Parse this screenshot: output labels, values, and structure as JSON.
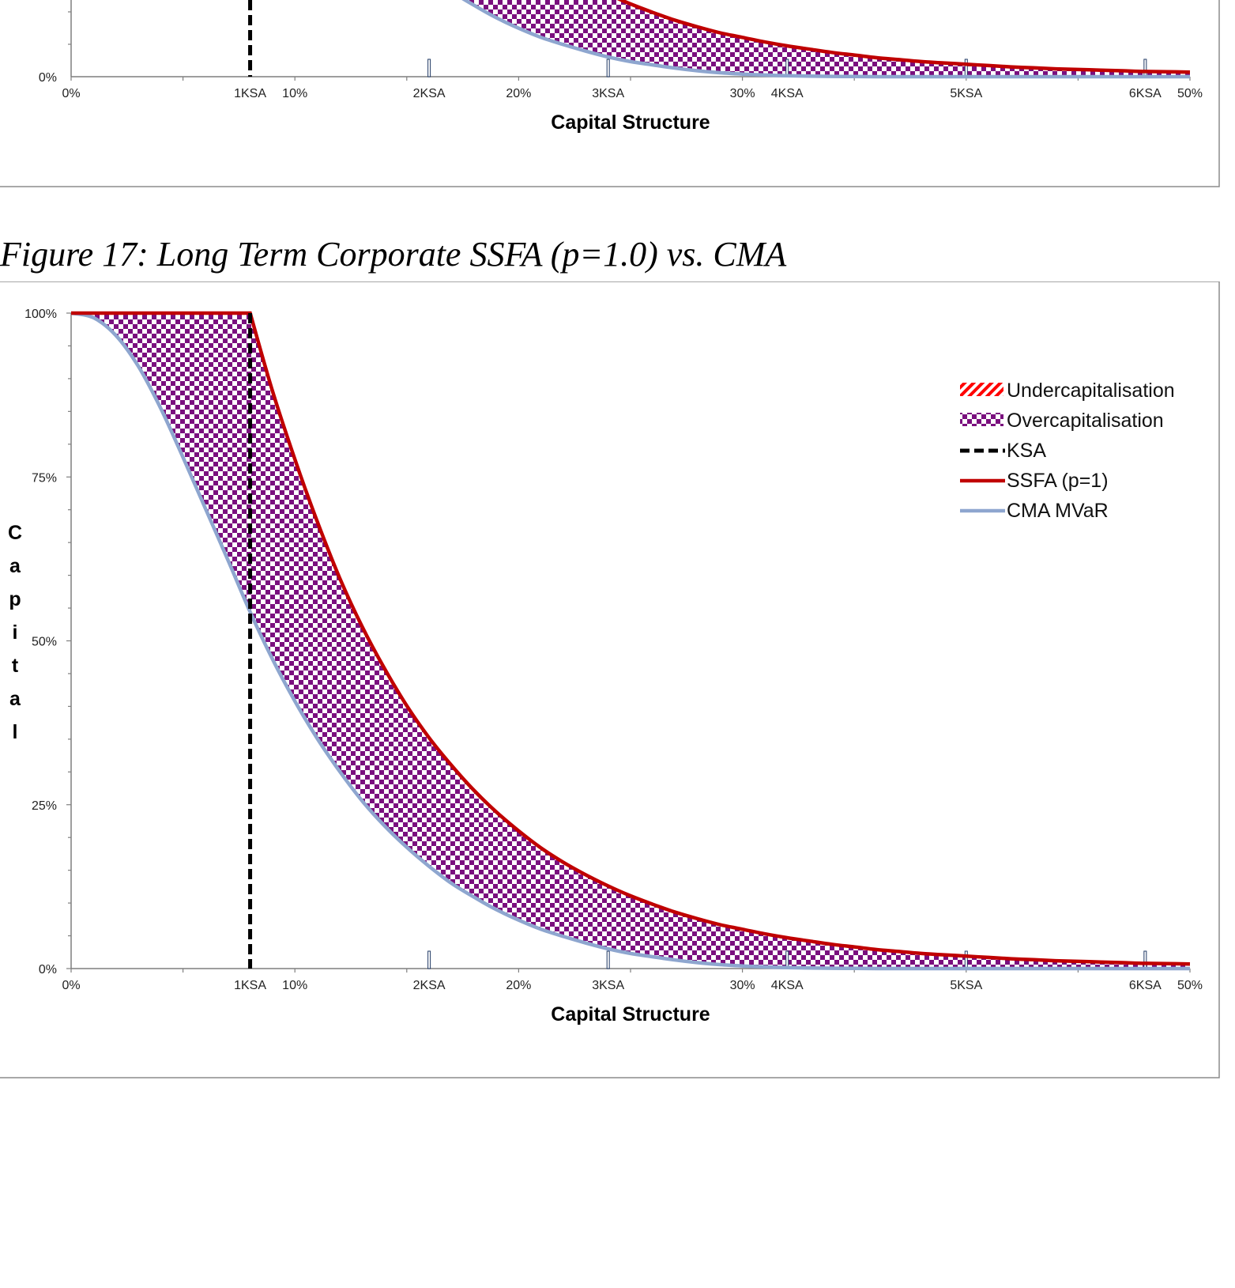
{
  "figure_caption": "Figure 17: Long Term Corporate SSFA (p=1.0) vs. CMA",
  "colors": {
    "ssfa": "#c00000",
    "cma": "#8ea6cf",
    "ksa": "#000000",
    "overcap": "#7a0f7e",
    "undercap": "#ff0000",
    "axis": "#7f7f7f",
    "frame": "#8c8c8c"
  },
  "top_chart": {
    "y_tick": "0%",
    "x_ticks": [
      {
        "label": "0%",
        "value": 0
      },
      {
        "label": "1KSA",
        "value": 8
      },
      {
        "label": "10%",
        "value": 10
      },
      {
        "label": "2KSA",
        "value": 16
      },
      {
        "label": "20%",
        "value": 20
      },
      {
        "label": "3KSA",
        "value": 24
      },
      {
        "label": "30%",
        "value": 30
      },
      {
        "label": "4KSA",
        "value": 32
      },
      {
        "label": "5KSA",
        "value": 40
      },
      {
        "label": "6KSA",
        "value": 48
      },
      {
        "label": "50%",
        "value": 50
      }
    ],
    "xlabel": "Capital Structure"
  },
  "chart_data": {
    "type": "area",
    "title": "Figure 17: Long Term Corporate SSFA (p=1.0) vs. CMA",
    "xlabel": "Capital Structure",
    "ylabel": "Capital",
    "xlim": [
      0,
      50
    ],
    "ylim": [
      0,
      100
    ],
    "grid": false,
    "legend_position": "top-right",
    "y_ticks": [
      {
        "label": "0%",
        "value": 0
      },
      {
        "label": "25%",
        "value": 25
      },
      {
        "label": "50%",
        "value": 50
      },
      {
        "label": "75%",
        "value": 75
      },
      {
        "label": "100%",
        "value": 100
      }
    ],
    "x_ticks": [
      {
        "label": "0%",
        "value": 0
      },
      {
        "label": "1KSA",
        "value": 8
      },
      {
        "label": "10%",
        "value": 10
      },
      {
        "label": "2KSA",
        "value": 16
      },
      {
        "label": "20%",
        "value": 20
      },
      {
        "label": "3KSA",
        "value": 24
      },
      {
        "label": "30%",
        "value": 30
      },
      {
        "label": "4KSA",
        "value": 32
      },
      {
        "label": "5KSA",
        "value": 40
      },
      {
        "label": "6KSA",
        "value": 48
      },
      {
        "label": "50%",
        "value": 50
      }
    ],
    "ksa_x": 8,
    "legend": [
      {
        "label": "Undercapitalisation",
        "kind": "hatch"
      },
      {
        "label": "Overcapitalisation",
        "kind": "checker"
      },
      {
        "label": "KSA",
        "kind": "dash"
      },
      {
        "label": "SSFA (p=1)",
        "kind": "ssfa"
      },
      {
        "label": "CMA MVaR",
        "kind": "cma"
      }
    ],
    "x": [
      0,
      1,
      2,
      3,
      4,
      5,
      6,
      7,
      8,
      9,
      10,
      11,
      12,
      13,
      14,
      15,
      16,
      17,
      18,
      19,
      20,
      21,
      22,
      23,
      24,
      25,
      26,
      27,
      28,
      29,
      30,
      31,
      32,
      33,
      34,
      35,
      36,
      37,
      38,
      39,
      40,
      41,
      42,
      43,
      44,
      45,
      46,
      47,
      48,
      49,
      50
    ],
    "series": [
      {
        "name": "SSFA (p=1)",
        "values": [
          100,
          100,
          100,
          100,
          100,
          100,
          100,
          100,
          100,
          88.1,
          77.7,
          68.2,
          59.6,
          52.2,
          45.8,
          40.1,
          35.2,
          31.0,
          27.2,
          23.9,
          21.0,
          18.4,
          16.2,
          14.3,
          12.6,
          11.1,
          9.8,
          8.6,
          7.6,
          6.7,
          6.0,
          5.3,
          4.7,
          4.2,
          3.7,
          3.3,
          2.9,
          2.6,
          2.3,
          2.1,
          1.9,
          1.7,
          1.5,
          1.35,
          1.2,
          1.1,
          1.0,
          0.9,
          0.8,
          0.75,
          0.7
        ]
      },
      {
        "name": "CMA MVaR",
        "values": [
          100,
          99.3,
          96.6,
          91.9,
          85.5,
          78.0,
          70.2,
          62.4,
          54.4,
          47.2,
          40.8,
          35.1,
          30.1,
          25.6,
          21.8,
          18.5,
          15.6,
          13.0,
          10.9,
          9.0,
          7.4,
          6.0,
          4.9,
          3.9,
          3.0,
          2.3,
          1.8,
          1.3,
          0.9,
          0.6,
          0.4,
          0.25,
          0.15,
          0.1,
          0.05,
          0.02,
          0,
          0,
          0,
          0,
          0,
          0,
          0,
          0,
          0,
          0,
          0,
          0,
          0,
          0,
          0
        ]
      }
    ]
  }
}
